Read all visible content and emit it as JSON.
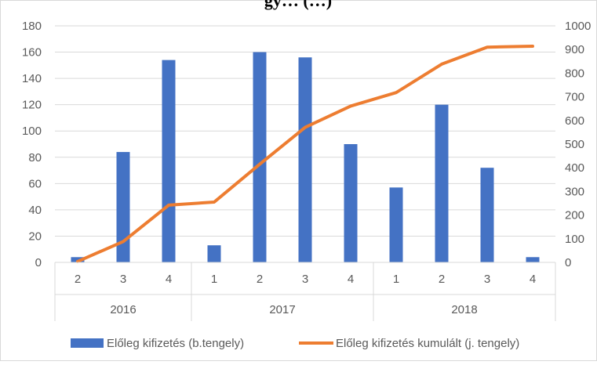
{
  "chart_data": {
    "type": "bar",
    "title": "gy… (…)",
    "categories": [
      "2",
      "3",
      "4",
      "1",
      "2",
      "3",
      "4",
      "1",
      "2",
      "3",
      "4"
    ],
    "category_groups": [
      {
        "label": "2016",
        "count": 3
      },
      {
        "label": "2017",
        "count": 4
      },
      {
        "label": "2018",
        "count": 4
      }
    ],
    "series": [
      {
        "name": "Előleg kifizetés (b.tengely)",
        "type": "bar",
        "axis": "left",
        "color": "#4472C4",
        "values": [
          4,
          84,
          154,
          13,
          160,
          156,
          90,
          57,
          120,
          72,
          4
        ]
      },
      {
        "name": "Előleg kifizetés kumulált (j. tengely)",
        "type": "line",
        "axis": "right",
        "color": "#ED7D31",
        "values": [
          4,
          88,
          242,
          255,
          415,
          571,
          661,
          718,
          838,
          910,
          914
        ]
      }
    ],
    "y_left": {
      "ylim": [
        0,
        180
      ],
      "ticks": [
        "0",
        "20",
        "40",
        "60",
        "80",
        "100",
        "120",
        "140",
        "160",
        "180"
      ]
    },
    "y_right": {
      "ylim": [
        0,
        1000
      ],
      "ticks": [
        "0",
        "100",
        "200",
        "300",
        "400",
        "500",
        "600",
        "700",
        "800",
        "900",
        "1000"
      ]
    },
    "grid": true,
    "legend_position": "bottom"
  }
}
